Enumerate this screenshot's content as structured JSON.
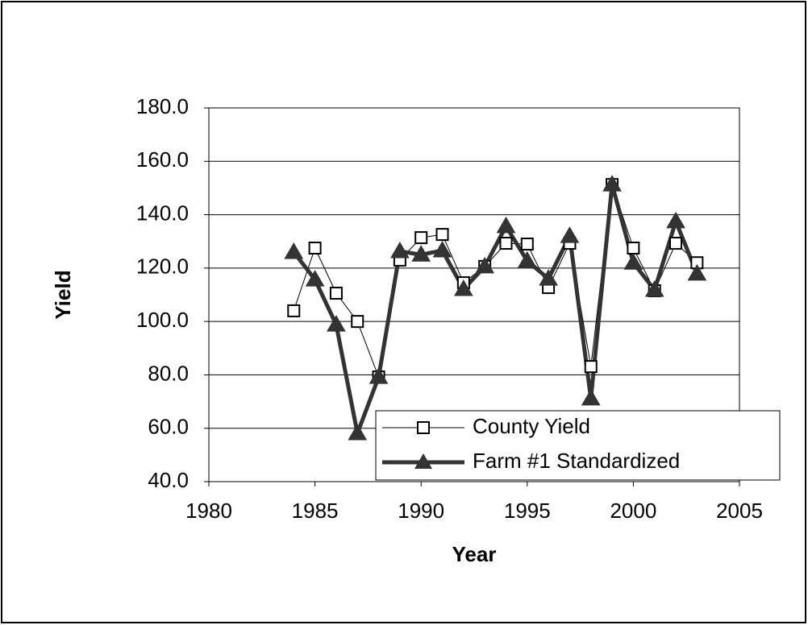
{
  "chart_data": {
    "type": "line",
    "x_label": "Year",
    "y_label": "Yield",
    "x": [
      1984,
      1985,
      1986,
      1987,
      1988,
      1989,
      1990,
      1991,
      1992,
      1993,
      1994,
      1995,
      1996,
      1997,
      1998,
      1999,
      2000,
      2001,
      2002,
      2003
    ],
    "series": [
      {
        "name": "County Yield",
        "color": "#000000",
        "marker": "square",
        "values": [
          104.0,
          127.5,
          110.6,
          100.0,
          79.2,
          123.0,
          131.4,
          132.6,
          114.5,
          120.6,
          129.3,
          129.0,
          112.7,
          129.3,
          83.1,
          151.3,
          127.5,
          111.5,
          129.3,
          122.0
        ]
      },
      {
        "name": "Farm #1 Standardized",
        "color": "#333333",
        "marker": "triangle",
        "values": [
          126.0,
          115.7,
          98.8,
          58.1,
          79.2,
          126.3,
          125.0,
          126.6,
          112.1,
          120.6,
          135.7,
          122.7,
          116.0,
          132.0,
          71.1,
          151.3,
          122.0,
          111.8,
          137.5,
          117.9
        ]
      }
    ],
    "xlim": [
      1980,
      2005
    ],
    "xticks": [
      1980,
      1985,
      1990,
      1995,
      2000,
      2005
    ],
    "ylim": [
      40,
      180
    ],
    "yticks": [
      {
        "value": 40,
        "label": "40.0"
      },
      {
        "value": 60,
        "label": "60.0"
      },
      {
        "value": 80,
        "label": "80.0"
      },
      {
        "value": 100,
        "label": "100.0"
      },
      {
        "value": 120,
        "label": "120.0"
      },
      {
        "value": 140,
        "label": "140.0"
      },
      {
        "value": 160,
        "label": "160.0"
      },
      {
        "value": 180,
        "label": "180.0"
      }
    ],
    "grid": true,
    "legend": "lower right"
  }
}
